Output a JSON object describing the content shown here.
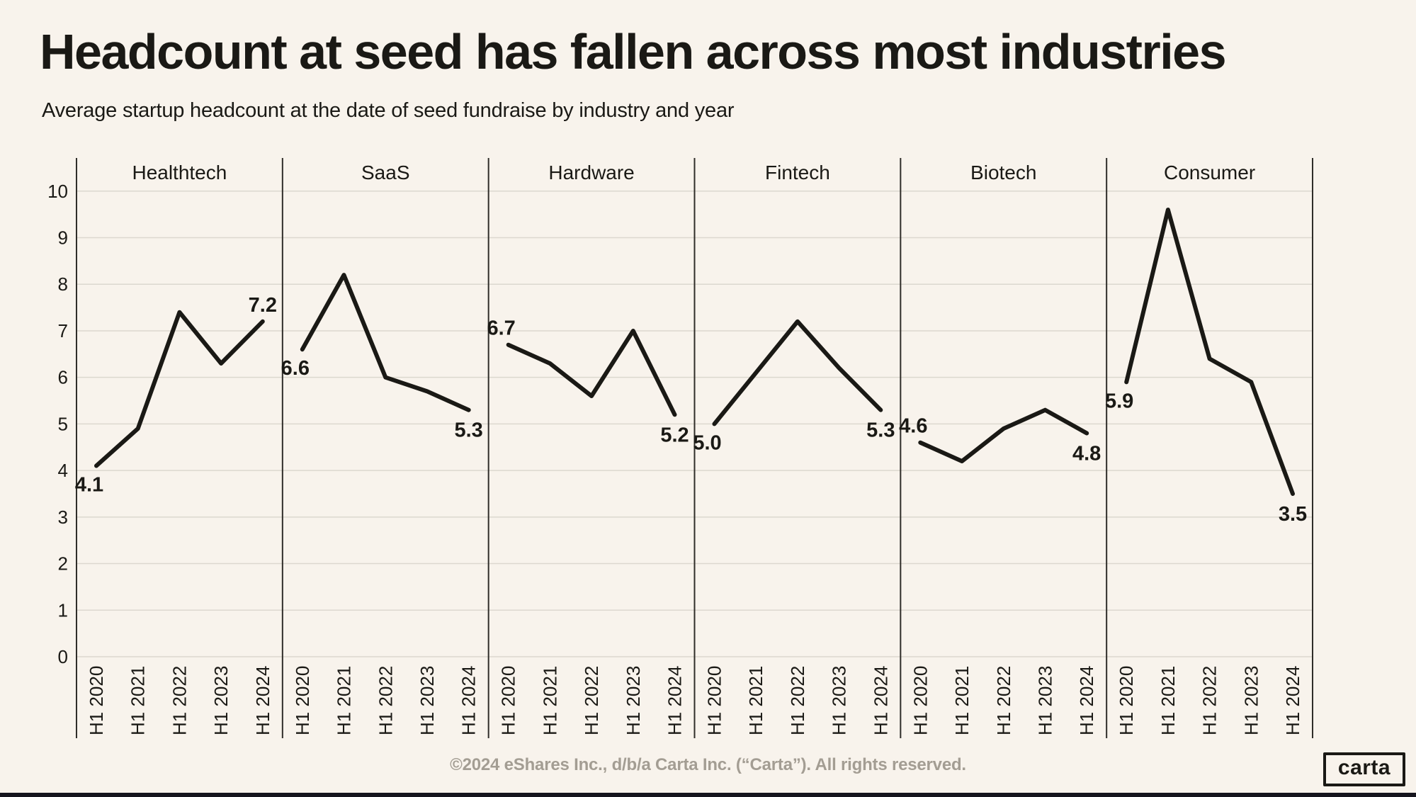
{
  "header": {
    "title": "Headcount at seed has fallen across most industries",
    "subtitle": "Average startup headcount at the date of seed fundraise by industry and year"
  },
  "chart_data": {
    "type": "line",
    "categories": [
      "H1 2020",
      "H1 2021",
      "H1 2022",
      "H1 2023",
      "H1 2024"
    ],
    "ylim": [
      0,
      10
    ],
    "yticks": [
      0,
      1,
      2,
      3,
      4,
      5,
      6,
      7,
      8,
      9,
      10
    ],
    "grid": true,
    "legend_position": "none",
    "panels": [
      {
        "name": "Healthtech",
        "values": [
          4.1,
          4.9,
          7.4,
          6.3,
          7.2
        ],
        "first_label": "4.1",
        "last_label": "7.2"
      },
      {
        "name": "SaaS",
        "values": [
          6.6,
          8.2,
          6.0,
          5.7,
          5.3
        ],
        "first_label": "6.6",
        "last_label": "5.3"
      },
      {
        "name": "Hardware",
        "values": [
          6.7,
          6.3,
          5.6,
          7.0,
          5.2
        ],
        "first_label": "6.7",
        "last_label": "5.2"
      },
      {
        "name": "Fintech",
        "values": [
          5.0,
          6.1,
          7.2,
          6.2,
          5.3
        ],
        "first_label": "5.0",
        "last_label": "5.3"
      },
      {
        "name": "Biotech",
        "values": [
          4.6,
          4.2,
          4.9,
          5.3,
          4.8
        ],
        "first_label": "4.6",
        "last_label": "4.8"
      },
      {
        "name": "Consumer",
        "values": [
          5.9,
          9.6,
          6.4,
          5.9,
          3.5
        ],
        "first_label": "5.9",
        "last_label": "3.5"
      }
    ]
  },
  "colors": {
    "background": "#f8f3ec",
    "ink": "#1a1915",
    "line": "#1a1915",
    "grid": "#dcd8cf",
    "separator": "#2f2d29",
    "footer_text": "#a39d93",
    "bottom_bar": "#16151e"
  },
  "footer": {
    "copyright": "©2024 eShares Inc., d/b/a Carta Inc. (“Carta”). All rights reserved.",
    "logo_text": "carta"
  }
}
